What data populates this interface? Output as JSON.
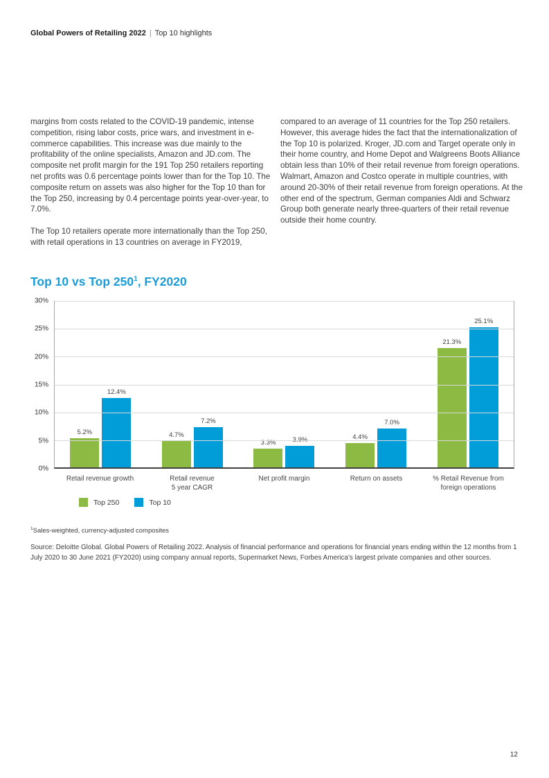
{
  "header": {
    "title_bold": "Global Powers of Retailing 2022",
    "separator": "|",
    "title_rest": "Top 10 highlights"
  },
  "body": {
    "left_col": [
      "margins from costs related to the COVID-19 pandemic, intense competition, rising labor costs, price wars, and investment in e-commerce capabilities. This increase was due mainly to the profitability of the online specialists, Amazon and JD.com. The composite net profit margin for the 191 Top 250 retailers reporting net profits was 0.6 percentage points lower than for the Top 10. The composite return on assets was also higher for the Top 10 than for the Top 250, increasing by 0.4 percentage points year-over-year, to 7.0%.",
      "The Top 10 retailers operate more internationally than the Top 250, with retail operations in 13 countries on average in FY2019,"
    ],
    "right_col": [
      "compared to an average of 11 countries for the Top 250 retailers. However, this average hides the fact that the internationalization of the Top 10 is polarized. Kroger, JD.com and Target operate only in their home country, and Home Depot and Walgreens Boots Alliance obtain less than 10% of their retail revenue from foreign operations. Walmart, Amazon and Costco operate in multiple countries, with around 20-30% of their retail revenue from foreign operations. At the other end of the spectrum, German companies Aldi and Schwarz Group both generate nearly three-quarters of their retail revenue outside their home country."
    ]
  },
  "chart": {
    "title": {
      "main": "Top 10 vs Top 250",
      "sup": "1",
      "suffix": ", FY2020"
    },
    "title_color": "#1b9cd8"
  },
  "chart_data": {
    "type": "bar",
    "categories": [
      [
        "Retail revenue growth"
      ],
      [
        "Retail revenue",
        "5 year CAGR"
      ],
      [
        "Net profit margin"
      ],
      [
        "Return on assets"
      ],
      [
        "% Retail Revenue from",
        "foreign operations"
      ]
    ],
    "series": [
      {
        "name": "Top 250",
        "color": "#8cba42",
        "values": [
          5.2,
          4.7,
          3.3,
          4.4,
          21.3
        ]
      },
      {
        "name": "Top 10",
        "color": "#009dd9",
        "values": [
          12.4,
          7.2,
          3.9,
          7.0,
          25.1
        ]
      }
    ],
    "value_label_format": "percent_one_decimal",
    "yticks": [
      0,
      5,
      10,
      15,
      20,
      25,
      30
    ],
    "ytick_suffix": "%",
    "ylim": [
      0,
      30
    ],
    "grid": true,
    "legend_position": "bottom-left",
    "title": "Top 10 vs Top 250¹, FY2020"
  },
  "footnote": {
    "sup": "1",
    "text": "Sales-weighted, currency-adjusted composites"
  },
  "source": "Source: Deloitte Global. Global Powers of Retailing 2022. Analysis of financial performance and operations for financial years ending within the 12 months from 1 July 2020 to 30 June 2021 (FY2020) using company annual reports, Supermarket News, Forbes America’s largest private companies and other sources.",
  "page_number": "12"
}
